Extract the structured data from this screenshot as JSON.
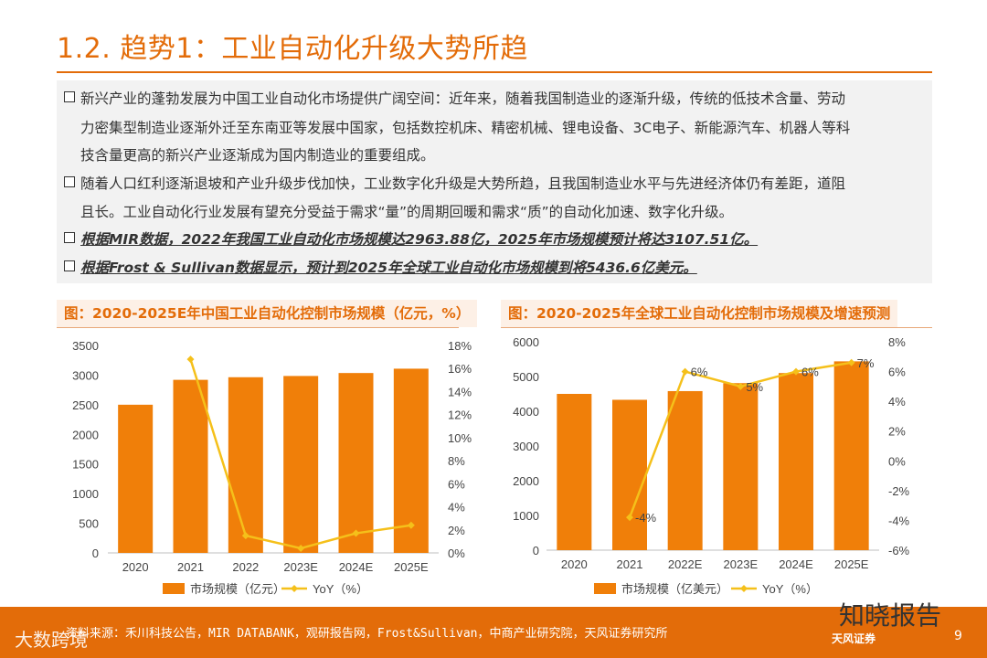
{
  "title": "1.2. 趋势1：工业自动化升级大势所趋",
  "bullets": [
    {
      "text": "新兴产业的蓬勃发展为中国工业自动化市场提供广阔空间：近年来，随着我国制造业的逐渐升级，传统的低技术含量、劳动",
      "box": true
    },
    {
      "text": "力密集型制造业逐渐外迁至东南亚等发展中国家，包括数控机床、精密机械、锂电设备、3C电子、新能源汽车、机器人等科",
      "box": false
    },
    {
      "text": "技含量更高的新兴产业逐渐成为国内制造业的重要组成。",
      "box": false
    },
    {
      "text": "随着人口红利逐渐退坡和产业升级步伐加快，工业数字化升级是大势所趋，且我国制造业水平与先进经济体仍有差距，道阻",
      "box": true
    },
    {
      "text": "且长。工业自动化行业发展有望充分受益于需求“量”的周期回暖和需求“质”的自动化加速、数字化升级。",
      "box": false
    },
    {
      "text": "根据MIR数据，2022年我国工业自动化市场规模达2963.88亿，2025年市场规模预计将达3107.51亿。",
      "box": true,
      "em": true
    },
    {
      "text": "根据Frost & Sullivan数据显示，预计到2025年全球工业自动化市场规模到将5436.6亿美元。",
      "box": true,
      "em": true
    }
  ],
  "chart_data": [
    {
      "type": "bar",
      "title": "图：2020-2025E年中国工业自动化控制市场规模（亿元，%）",
      "categories": [
        "2020",
        "2021",
        "2022",
        "2023E",
        "2024E",
        "2025E"
      ],
      "series": [
        {
          "name": "市场规模（亿元）",
          "type": "bar",
          "axis": "left",
          "values": [
            2500,
            2920,
            2964,
            2985,
            3035,
            3108
          ]
        },
        {
          "name": "YoY（%）",
          "type": "line",
          "axis": "right",
          "values": [
            null,
            16.8,
            1.5,
            0.4,
            1.7,
            2.4
          ]
        }
      ],
      "ylim": [
        0,
        3500
      ],
      "yticks": [
        "0",
        "500",
        "1000",
        "1500",
        "2000",
        "2500",
        "3000",
        "3500"
      ],
      "y2lim": [
        0,
        18
      ],
      "y2ticks": [
        "0%",
        "2%",
        "4%",
        "6%",
        "8%",
        "10%",
        "12%",
        "14%",
        "16%",
        "18%"
      ],
      "colors": {
        "bar": "#f07f09",
        "line": "#f5c01a"
      }
    },
    {
      "type": "bar",
      "title": "图：2020-2025年全球工业自动化控制市场规模及增速预测",
      "categories": [
        "2020",
        "2021",
        "2022E",
        "2023E",
        "2024E",
        "2025E"
      ],
      "series": [
        {
          "name": "市场规模（亿美元）",
          "type": "bar",
          "axis": "left",
          "values": [
            4500,
            4330,
            4580,
            4810,
            5100,
            5437
          ]
        },
        {
          "name": "YoY（%）",
          "type": "line",
          "axis": "right",
          "values": [
            null,
            -3.8,
            6,
            5,
            6,
            6.6
          ],
          "labels": [
            "",
            "-4%",
            "6%",
            "5%",
            "6%",
            "7%"
          ]
        }
      ],
      "ylim": [
        0,
        6000
      ],
      "yticks": [
        "0",
        "1000",
        "2000",
        "3000",
        "4000",
        "5000",
        "6000"
      ],
      "y2lim": [
        -6,
        8
      ],
      "y2ticks": [
        "-6%",
        "-4%",
        "-2%",
        "0%",
        "2%",
        "4%",
        "6%",
        "8%"
      ],
      "colors": {
        "bar": "#f07f09",
        "line": "#f5c01a"
      }
    }
  ],
  "footer": {
    "source": "资料来源：禾川科技公告，MIR DATABANK，观研报告网，Frost&Sullivan，中商产业研究院，天风证券研究所",
    "watermark_left": "大数跨境",
    "watermark_right": "知晓报告",
    "brand": "天风证券",
    "page": "9"
  }
}
